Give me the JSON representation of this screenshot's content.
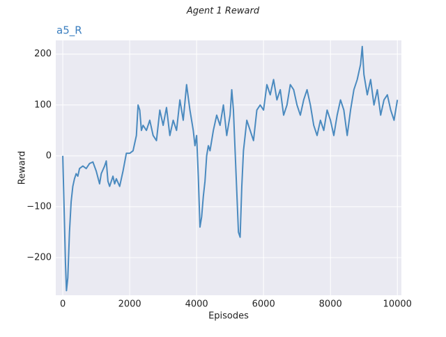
{
  "chart_data": {
    "type": "line",
    "title": "Agent 1 Reward",
    "subtitle": "a5_R",
    "xlabel": "Episodes",
    "ylabel": "Reward",
    "color": "#4a8abf",
    "grid": true,
    "xlim": [
      -210,
      10120
    ],
    "ylim": [
      -274,
      227
    ],
    "xticks": [
      0,
      2000,
      4000,
      6000,
      8000,
      10000
    ],
    "yticks": [
      {
        "value": -200,
        "label": "−200"
      },
      {
        "value": -100,
        "label": "−100"
      },
      0,
      100,
      200
    ],
    "x": [
      0,
      50,
      80,
      110,
      150,
      200,
      250,
      300,
      350,
      400,
      450,
      500,
      600,
      700,
      800,
      900,
      1000,
      1100,
      1150,
      1250,
      1300,
      1350,
      1400,
      1500,
      1550,
      1600,
      1700,
      1800,
      1900,
      2000,
      2100,
      2200,
      2250,
      2300,
      2350,
      2400,
      2500,
      2600,
      2700,
      2800,
      2900,
      3000,
      3100,
      3200,
      3300,
      3400,
      3500,
      3600,
      3700,
      3800,
      3900,
      3950,
      4000,
      4050,
      4100,
      4150,
      4200,
      4250,
      4300,
      4350,
      4400,
      4500,
      4600,
      4700,
      4800,
      4900,
      5000,
      5050,
      5100,
      5150,
      5200,
      5250,
      5300,
      5350,
      5400,
      5450,
      5500,
      5600,
      5700,
      5800,
      5900,
      6000,
      6100,
      6200,
      6300,
      6400,
      6500,
      6600,
      6700,
      6800,
      6900,
      7000,
      7100,
      7200,
      7300,
      7400,
      7500,
      7600,
      7700,
      7800,
      7900,
      8000,
      8100,
      8200,
      8300,
      8400,
      8500,
      8600,
      8700,
      8800,
      8900,
      8950,
      9000,
      9100,
      9200,
      9300,
      9400,
      9500,
      9600,
      9700,
      9800,
      9900,
      10000
    ],
    "values": [
      0,
      -130,
      -210,
      -265,
      -240,
      -150,
      -90,
      -60,
      -45,
      -35,
      -40,
      -25,
      -20,
      -25,
      -15,
      -12,
      -30,
      -55,
      -35,
      -20,
      -10,
      -50,
      -60,
      -40,
      -55,
      -45,
      -60,
      -30,
      5,
      5,
      10,
      40,
      100,
      90,
      50,
      60,
      50,
      70,
      40,
      30,
      90,
      60,
      95,
      40,
      70,
      50,
      110,
      70,
      140,
      90,
      50,
      20,
      40,
      -40,
      -140,
      -120,
      -80,
      -50,
      0,
      20,
      10,
      50,
      80,
      60,
      100,
      40,
      80,
      130,
      90,
      10,
      -70,
      -150,
      -160,
      -60,
      10,
      40,
      70,
      50,
      30,
      90,
      100,
      90,
      140,
      120,
      150,
      110,
      130,
      80,
      100,
      140,
      130,
      100,
      80,
      110,
      130,
      100,
      60,
      40,
      70,
      50,
      90,
      70,
      40,
      80,
      110,
      90,
      40,
      90,
      130,
      150,
      180,
      215,
      160,
      120,
      150,
      100,
      130,
      80,
      110,
      120,
      90,
      70,
      110
    ]
  }
}
